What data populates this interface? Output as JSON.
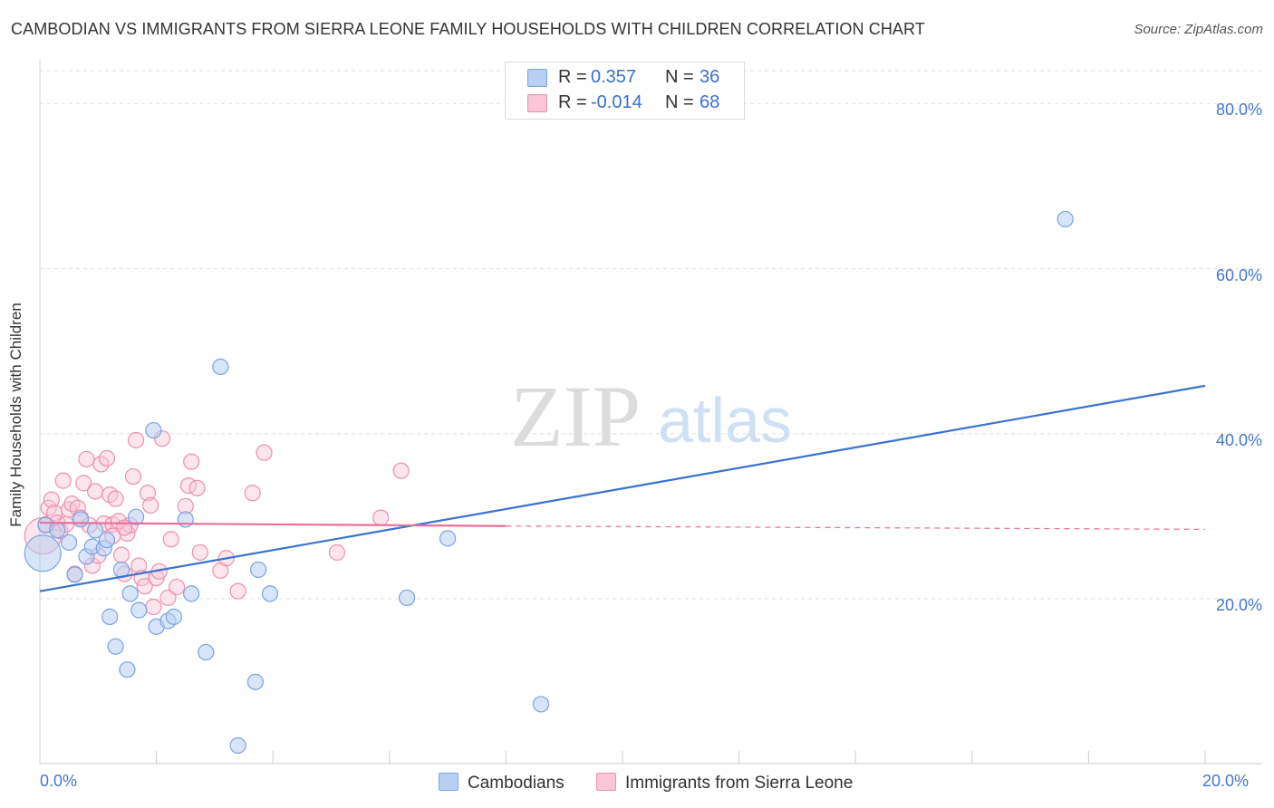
{
  "header": {
    "title": "CAMBODIAN VS IMMIGRANTS FROM SIERRA LEONE FAMILY HOUSEHOLDS WITH CHILDREN CORRELATION CHART",
    "source": "Source: ZipAtlas.com"
  },
  "watermark": {
    "zip": "ZIP",
    "atlas": "atlas"
  },
  "legend": {
    "series1": {
      "r_label": "R =",
      "r_value": "0.357",
      "n_label": "N =",
      "n_value": "36"
    },
    "series2": {
      "r_label": "R =",
      "r_value": "-0.014",
      "n_label": "N =",
      "n_value": "68"
    }
  },
  "colors": {
    "cambodians_fill": "#b8d0f4",
    "cambodians_stroke": "#7aa3e0",
    "cambodians_line": "#3a72d0",
    "sierra_fill": "#f8c6d6",
    "sierra_stroke": "#ec90ae",
    "sierra_line": "#e8709a",
    "axis_text": "#4477cc",
    "grid": "#e0e0e0"
  },
  "chart_data": {
    "type": "scatter",
    "title": "CAMBODIAN VS IMMIGRANTS FROM SIERRA LEONE FAMILY HOUSEHOLDS WITH CHILDREN CORRELATION CHART",
    "xlabel": "",
    "ylabel": "Family Households with Children",
    "xlim": [
      0,
      20
    ],
    "ylim": [
      0,
      84
    ],
    "x_tick_labels": [
      "0.0%",
      "20.0%"
    ],
    "y_ticks": [
      20,
      40,
      60,
      80
    ],
    "y_tick_labels": [
      "20.0%",
      "40.0%",
      "60.0%",
      "80.0%"
    ],
    "grid": true,
    "legend_position": "top-center",
    "series": [
      {
        "name": "Cambodians",
        "points": [
          {
            "x": 0.05,
            "y": 25.5,
            "big": true
          },
          {
            "x": 0.1,
            "y": 28.9
          },
          {
            "x": 0.3,
            "y": 28.3
          },
          {
            "x": 0.5,
            "y": 26.8
          },
          {
            "x": 0.6,
            "y": 22.9
          },
          {
            "x": 0.7,
            "y": 29.6
          },
          {
            "x": 0.8,
            "y": 25.1
          },
          {
            "x": 0.9,
            "y": 26.3
          },
          {
            "x": 0.95,
            "y": 28.3
          },
          {
            "x": 1.1,
            "y": 26.1
          },
          {
            "x": 1.15,
            "y": 27.1
          },
          {
            "x": 1.2,
            "y": 17.8
          },
          {
            "x": 1.3,
            "y": 14.2
          },
          {
            "x": 1.4,
            "y": 23.5
          },
          {
            "x": 1.5,
            "y": 11.4
          },
          {
            "x": 1.55,
            "y": 20.6
          },
          {
            "x": 1.65,
            "y": 29.9
          },
          {
            "x": 1.7,
            "y": 18.6
          },
          {
            "x": 1.95,
            "y": 40.4
          },
          {
            "x": 2.0,
            "y": 16.6
          },
          {
            "x": 2.2,
            "y": 17.3
          },
          {
            "x": 2.3,
            "y": 17.8
          },
          {
            "x": 2.5,
            "y": 29.6
          },
          {
            "x": 2.6,
            "y": 20.6
          },
          {
            "x": 2.85,
            "y": 13.5
          },
          {
            "x": 3.1,
            "y": 48.1
          },
          {
            "x": 3.4,
            "y": 2.2
          },
          {
            "x": 3.7,
            "y": 9.9
          },
          {
            "x": 3.75,
            "y": 23.5
          },
          {
            "x": 3.95,
            "y": 20.6
          },
          {
            "x": 6.3,
            "y": 20.1
          },
          {
            "x": 7.0,
            "y": 27.3
          },
          {
            "x": 8.6,
            "y": 7.2
          },
          {
            "x": 17.6,
            "y": 66.0
          }
        ],
        "trend": {
          "x0": 0,
          "y0": 20.9,
          "x1": 20,
          "y1": 45.8
        }
      },
      {
        "name": "Immigrants from Sierra Leone",
        "points": [
          {
            "x": 0.05,
            "y": 27.6,
            "big": true
          },
          {
            "x": 0.1,
            "y": 29.0
          },
          {
            "x": 0.15,
            "y": 31.0
          },
          {
            "x": 0.2,
            "y": 32.0
          },
          {
            "x": 0.25,
            "y": 30.4
          },
          {
            "x": 0.3,
            "y": 29.2
          },
          {
            "x": 0.35,
            "y": 28.2
          },
          {
            "x": 0.4,
            "y": 34.3
          },
          {
            "x": 0.45,
            "y": 29.0
          },
          {
            "x": 0.5,
            "y": 30.8
          },
          {
            "x": 0.55,
            "y": 31.5
          },
          {
            "x": 0.6,
            "y": 23.0
          },
          {
            "x": 0.65,
            "y": 31.0
          },
          {
            "x": 0.7,
            "y": 29.8
          },
          {
            "x": 0.75,
            "y": 34.0
          },
          {
            "x": 0.8,
            "y": 36.9
          },
          {
            "x": 0.85,
            "y": 28.9
          },
          {
            "x": 0.9,
            "y": 24.0
          },
          {
            "x": 0.95,
            "y": 33.0
          },
          {
            "x": 1.0,
            "y": 25.2
          },
          {
            "x": 1.05,
            "y": 36.3
          },
          {
            "x": 1.1,
            "y": 29.1
          },
          {
            "x": 1.15,
            "y": 37.0
          },
          {
            "x": 1.2,
            "y": 32.6
          },
          {
            "x": 1.25,
            "y": 29.0
          },
          {
            "x": 1.3,
            "y": 32.1
          },
          {
            "x": 1.35,
            "y": 29.4
          },
          {
            "x": 1.4,
            "y": 25.3
          },
          {
            "x": 1.45,
            "y": 23.0
          },
          {
            "x": 1.5,
            "y": 27.9
          },
          {
            "x": 1.55,
            "y": 28.9
          },
          {
            "x": 1.6,
            "y": 34.8
          },
          {
            "x": 1.65,
            "y": 39.2
          },
          {
            "x": 1.7,
            "y": 24.0
          },
          {
            "x": 1.75,
            "y": 22.5
          },
          {
            "x": 1.8,
            "y": 21.5
          },
          {
            "x": 1.85,
            "y": 32.8
          },
          {
            "x": 1.9,
            "y": 31.3
          },
          {
            "x": 1.95,
            "y": 19.0
          },
          {
            "x": 2.0,
            "y": 22.5
          },
          {
            "x": 2.05,
            "y": 23.3
          },
          {
            "x": 2.1,
            "y": 39.4
          },
          {
            "x": 2.2,
            "y": 20.1
          },
          {
            "x": 2.25,
            "y": 27.2
          },
          {
            "x": 2.35,
            "y": 21.4
          },
          {
            "x": 2.5,
            "y": 31.2
          },
          {
            "x": 2.55,
            "y": 33.7
          },
          {
            "x": 2.6,
            "y": 36.6
          },
          {
            "x": 2.7,
            "y": 33.4
          },
          {
            "x": 2.75,
            "y": 25.6
          },
          {
            "x": 3.1,
            "y": 23.4
          },
          {
            "x": 3.2,
            "y": 24.9
          },
          {
            "x": 3.4,
            "y": 20.9
          },
          {
            "x": 3.65,
            "y": 32.8
          },
          {
            "x": 3.85,
            "y": 37.7
          },
          {
            "x": 5.1,
            "y": 25.6
          },
          {
            "x": 5.85,
            "y": 29.8
          },
          {
            "x": 6.2,
            "y": 35.5
          },
          {
            "x": 1.45,
            "y": 28.6
          },
          {
            "x": 1.25,
            "y": 27.6
          }
        ],
        "trend": {
          "x0": 0,
          "y0": 29.2,
          "x1": 8.0,
          "y1": 28.8,
          "dashed_to_x": 20,
          "dashed_to_y": 28.4
        }
      }
    ]
  },
  "bottom_legend": {
    "item1": "Cambodians",
    "item2": "Immigrants from Sierra Leone"
  }
}
